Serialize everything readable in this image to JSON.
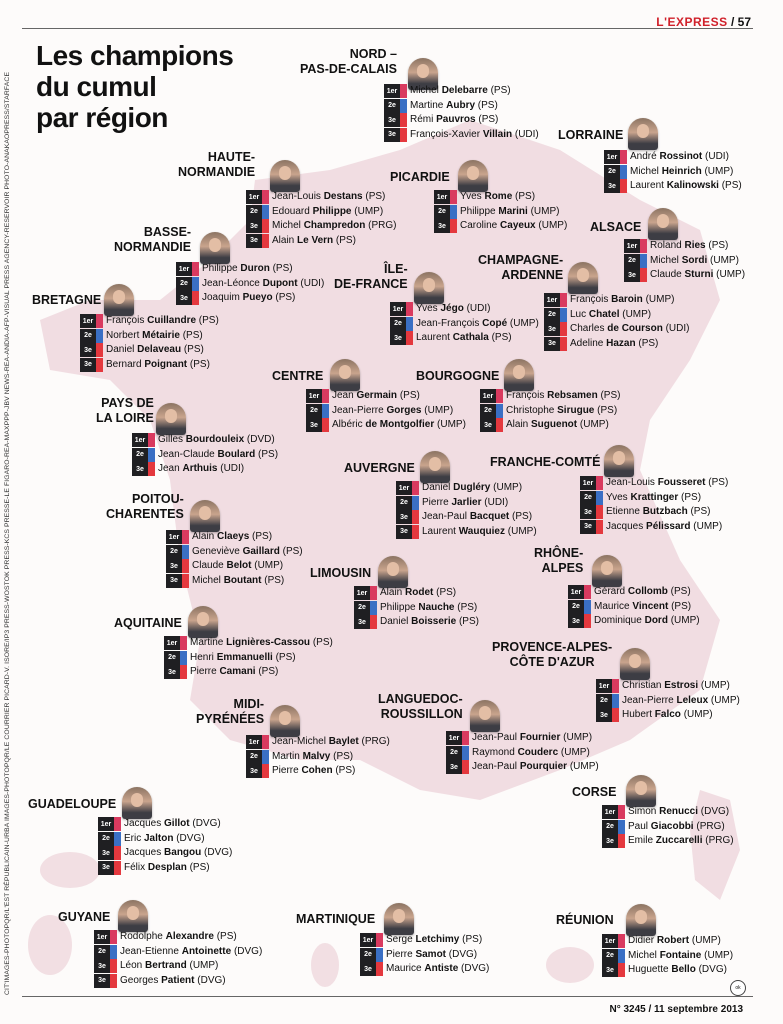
{
  "header": {
    "brand": "L'EXPRESS",
    "page": "/ 57"
  },
  "title": [
    "Les champions",
    "du cumul",
    "par région"
  ],
  "credit": "CIT'IMAGES-PHOTOPQR/L'EST RÉPUBLICAIN-URBA IMAGES-PHOTOPQR/LE COURRIER PICARD-V. ISORE/IP3 PRESS-WOSTOK PRESS-KCS PRESSE-LE FIGARO-REA-MAXPPP-JBV NEWS-REA-ANDIA-AFP-VISUAL PRESS AGENCY-RESERVOIR PHOTO-ANAKAOPRESS/STARFACE",
  "footer": {
    "issue": "N° 3245 / 11 septembre 2013"
  },
  "colors": {
    "brand": "#d0202a",
    "rank1": "#d93a5f",
    "rank2": "#3a6fc4",
    "rank3": "#e4383e",
    "map": "#ecd3d9"
  },
  "ranks": [
    "1er",
    "2e",
    "3e"
  ],
  "regions": [
    {
      "name": [
        "NORD –",
        "PAS-DE-CALAIS"
      ],
      "people": [
        {
          "first": "Michel",
          "last": "Delebarre",
          "party": "(PS)"
        },
        {
          "first": "Martine",
          "last": "Aubry",
          "party": "(PS)"
        },
        {
          "first": "Rémi",
          "last": "Pauvros",
          "party": "(PS)"
        },
        {
          "first": "François-Xavier",
          "last": "Villain",
          "party": "(UDI)"
        }
      ]
    },
    {
      "name": [
        "LORRAINE"
      ],
      "people": [
        {
          "first": "André",
          "last": "Rossinot",
          "party": "(UDI)"
        },
        {
          "first": "Michel",
          "last": "Heinrich",
          "party": "(UMP)"
        },
        {
          "first": "Laurent",
          "last": "Kalinowski",
          "party": "(PS)"
        }
      ]
    },
    {
      "name": [
        "HAUTE-",
        "NORMANDIE"
      ],
      "people": [
        {
          "first": "Jean-Louis",
          "last": "Destans",
          "party": "(PS)"
        },
        {
          "first": "Edouard",
          "last": "Philippe",
          "party": "(UMP)"
        },
        {
          "first": "Michel",
          "last": "Champredon",
          "party": "(PRG)"
        },
        {
          "first": "Alain",
          "last": "Le Vern",
          "party": "(PS)"
        }
      ]
    },
    {
      "name": [
        "PICARDIE"
      ],
      "people": [
        {
          "first": "Yves",
          "last": "Rome",
          "party": "(PS)"
        },
        {
          "first": "Philippe",
          "last": "Marini",
          "party": "(UMP)"
        },
        {
          "first": "Caroline",
          "last": "Cayeux",
          "party": "(UMP)"
        }
      ]
    },
    {
      "name": [
        "ALSACE"
      ],
      "people": [
        {
          "first": "Roland",
          "last": "Ries",
          "party": "(PS)"
        },
        {
          "first": "Michel",
          "last": "Sordi",
          "party": "(UMP)"
        },
        {
          "first": "Claude",
          "last": "Sturni",
          "party": "(UMP)"
        }
      ]
    },
    {
      "name": [
        "BASSE-",
        "NORMANDIE"
      ],
      "people": [
        {
          "first": "Philippe",
          "last": "Duron",
          "party": "(PS)"
        },
        {
          "first": "Jean-Léonce",
          "last": "Dupont",
          "party": "(UDI)"
        },
        {
          "first": "Joaquim",
          "last": "Pueyo",
          "party": "(PS)"
        }
      ]
    },
    {
      "name": [
        "CHAMPAGNE-",
        "ARDENNE"
      ],
      "people": [
        {
          "first": "François",
          "last": "Baroin",
          "party": "(UMP)"
        },
        {
          "first": "Luc",
          "last": "Chatel",
          "party": "(UMP)"
        },
        {
          "first": "Charles",
          "last": "de Courson",
          "party": "(UDI)"
        },
        {
          "first": "Adeline",
          "last": "Hazan",
          "party": "(PS)"
        }
      ]
    },
    {
      "name": [
        "ÎLE-",
        "DE-FRANCE"
      ],
      "people": [
        {
          "first": "Yves",
          "last": "Jégo",
          "party": "(UDI)"
        },
        {
          "first": "Jean-François",
          "last": "Copé",
          "party": "(UMP)"
        },
        {
          "first": "Laurent",
          "last": "Cathala",
          "party": "(PS)"
        }
      ]
    },
    {
      "name": [
        "BRETAGNE"
      ],
      "people": [
        {
          "first": "François",
          "last": "Cuillandre",
          "party": "(PS)"
        },
        {
          "first": "Norbert",
          "last": "Métairie",
          "party": "(PS)"
        },
        {
          "first": "Daniel",
          "last": "Delaveau",
          "party": "(PS)"
        },
        {
          "first": "Bernard",
          "last": "Poignant",
          "party": "(PS)"
        }
      ]
    },
    {
      "name": [
        "CENTRE"
      ],
      "people": [
        {
          "first": "Jean",
          "last": "Germain",
          "party": "(PS)"
        },
        {
          "first": "Jean-Pierre",
          "last": "Gorges",
          "party": "(UMP)"
        },
        {
          "first": "Albéric",
          "last": "de Montgolfier",
          "party": "(UMP)"
        }
      ]
    },
    {
      "name": [
        "BOURGOGNE"
      ],
      "people": [
        {
          "first": "François",
          "last": "Rebsamen",
          "party": "(PS)"
        },
        {
          "first": "Christophe",
          "last": "Sirugue",
          "party": "(PS)"
        },
        {
          "first": "Alain",
          "last": "Suguenot",
          "party": "(UMP)"
        }
      ]
    },
    {
      "name": [
        "PAYS DE",
        "LA LOIRE"
      ],
      "people": [
        {
          "first": "Gilles",
          "last": "Bourdouleix",
          "party": "(DVD)"
        },
        {
          "first": "Jean-Claude",
          "last": "Boulard",
          "party": "(PS)"
        },
        {
          "first": "Jean",
          "last": "Arthuis",
          "party": "(UDI)"
        }
      ]
    },
    {
      "name": [
        "AUVERGNE"
      ],
      "people": [
        {
          "first": "Daniel",
          "last": "Dugléry",
          "party": "(UMP)"
        },
        {
          "first": "Pierre",
          "last": "Jarlier",
          "party": "(UDI)"
        },
        {
          "first": "Jean-Paul",
          "last": "Bacquet",
          "party": "(PS)"
        },
        {
          "first": "Laurent",
          "last": "Wauquiez",
          "party": "(UMP)"
        }
      ]
    },
    {
      "name": [
        "FRANCHE-COMTÉ"
      ],
      "people": [
        {
          "first": "Jean-Louis",
          "last": "Fousseret",
          "party": "(PS)"
        },
        {
          "first": "Yves",
          "last": "Krattinger",
          "party": "(PS)"
        },
        {
          "first": "Etienne",
          "last": "Butzbach",
          "party": "(PS)"
        },
        {
          "first": "Jacques",
          "last": "Pélissard",
          "party": "(UMP)"
        }
      ]
    },
    {
      "name": [
        "POITOU-",
        "CHARENTES"
      ],
      "people": [
        {
          "first": "Alain",
          "last": "Claeys",
          "party": "(PS)"
        },
        {
          "first": "Geneviève",
          "last": "Gaillard",
          "party": "(PS)"
        },
        {
          "first": "Claude",
          "last": "Belot",
          "party": "(UMP)"
        },
        {
          "first": "Michel",
          "last": "Boutant",
          "party": "(PS)"
        }
      ]
    },
    {
      "name": [
        "LIMOUSIN"
      ],
      "people": [
        {
          "first": "Alain",
          "last": "Rodet",
          "party": "(PS)"
        },
        {
          "first": "Philippe",
          "last": "Nauche",
          "party": "(PS)"
        },
        {
          "first": "Daniel",
          "last": "Boisserie",
          "party": "(PS)"
        }
      ]
    },
    {
      "name": [
        "RHÔNE-",
        "ALPES"
      ],
      "people": [
        {
          "first": "Gérard",
          "last": "Collomb",
          "party": "(PS)"
        },
        {
          "first": "Maurice",
          "last": "Vincent",
          "party": "(PS)"
        },
        {
          "first": "Dominique",
          "last": "Dord",
          "party": "(UMP)"
        }
      ]
    },
    {
      "name": [
        "AQUITAINE"
      ],
      "people": [
        {
          "first": "Martine",
          "last": "Lignières-Cassou",
          "party": "(PS)"
        },
        {
          "first": "Henri",
          "last": "Emmanuelli",
          "party": "(PS)"
        },
        {
          "first": "Pierre",
          "last": "Camani",
          "party": "(PS)"
        }
      ]
    },
    {
      "name": [
        "PROVENCE-ALPES-",
        "CÔTE D'AZUR"
      ],
      "people": [
        {
          "first": "Christian",
          "last": "Estrosi",
          "party": "(UMP)"
        },
        {
          "first": "Jean-Pierre",
          "last": "Leleux",
          "party": "(UMP)"
        },
        {
          "first": "Hubert",
          "last": "Falco",
          "party": "(UMP)"
        }
      ]
    },
    {
      "name": [
        "MIDI-",
        "PYRÉNÉES"
      ],
      "people": [
        {
          "first": "Jean-Michel",
          "last": "Baylet",
          "party": "(PRG)"
        },
        {
          "first": "Martin",
          "last": "Malvy",
          "party": "(PS)"
        },
        {
          "first": "Pierre",
          "last": "Cohen",
          "party": "(PS)"
        }
      ]
    },
    {
      "name": [
        "LANGUEDOC-",
        "ROUSSILLON"
      ],
      "people": [
        {
          "first": "Jean-Paul",
          "last": "Fournier",
          "party": "(UMP)"
        },
        {
          "first": "Raymond",
          "last": "Couderc",
          "party": "(UMP)"
        },
        {
          "first": "Jean-Paul",
          "last": "Pourquier",
          "party": "(UMP)"
        }
      ]
    },
    {
      "name": [
        "CORSE"
      ],
      "people": [
        {
          "first": "Simon",
          "last": "Renucci",
          "party": "(DVG)"
        },
        {
          "first": "Paul",
          "last": "Giacobbi",
          "party": "(PRG)"
        },
        {
          "first": "Emile",
          "last": "Zuccarelli",
          "party": "(PRG)"
        }
      ]
    },
    {
      "name": [
        "GUADELOUPE"
      ],
      "people": [
        {
          "first": "Jacques",
          "last": "Gillot",
          "party": "(DVG)"
        },
        {
          "first": "Eric",
          "last": "Jalton",
          "party": "(DVG)"
        },
        {
          "first": "Jacques",
          "last": "Bangou",
          "party": "(DVG)"
        },
        {
          "first": "Félix",
          "last": "Desplan",
          "party": "(PS)"
        }
      ]
    },
    {
      "name": [
        "GUYANE"
      ],
      "people": [
        {
          "first": "Rodolphe",
          "last": "Alexandre",
          "party": "(PS)"
        },
        {
          "first": "Jean-Etienne",
          "last": "Antoinette",
          "party": "(DVG)"
        },
        {
          "first": "Léon",
          "last": "Bertrand",
          "party": "(UMP)"
        },
        {
          "first": "Georges",
          "last": "Patient",
          "party": "(DVG)"
        }
      ]
    },
    {
      "name": [
        "MARTINIQUE"
      ],
      "people": [
        {
          "first": "Serge",
          "last": "Letchimy",
          "party": "(PS)"
        },
        {
          "first": "Pierre",
          "last": "Samot",
          "party": "(DVG)"
        },
        {
          "first": "Maurice",
          "last": "Antiste",
          "party": "(DVG)"
        }
      ]
    },
    {
      "name": [
        "RÉUNION"
      ],
      "people": [
        {
          "first": "Didier",
          "last": "Robert",
          "party": "(UMP)"
        },
        {
          "first": "Michel",
          "last": "Fontaine",
          "party": "(UMP)"
        },
        {
          "first": "Huguette",
          "last": "Bello",
          "party": "(DVG)"
        }
      ]
    }
  ]
}
